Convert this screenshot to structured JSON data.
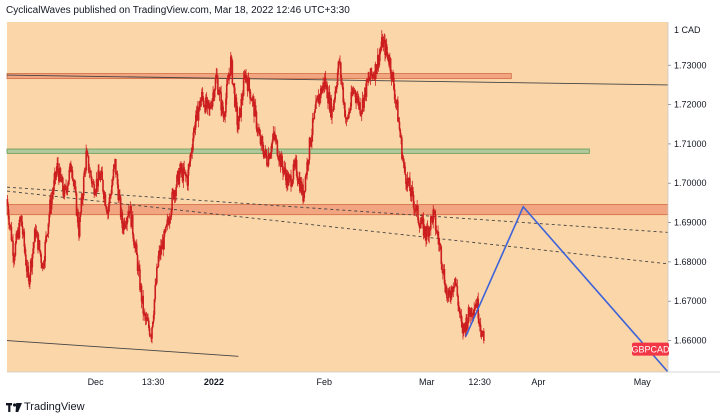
{
  "header": {
    "attribution": "CyclicalWaves published on TradingView.com, Mar 18, 2022 12:46 UTC+3:30"
  },
  "footer": {
    "brand": "TradingView",
    "logo_icon": "tradingview-logo-icon"
  },
  "colors": {
    "background": "#fbd6a9",
    "candle": "#cc1e1e",
    "trend_line": "#444444",
    "pattern_line": "#3d63d8",
    "resistance_zone": "#f0a07c",
    "support_zone": "#a8c89a",
    "badge": "#f23645"
  },
  "chart_data": {
    "type": "candlestick",
    "symbol": "GBPCAD",
    "currency": "CAD",
    "timeframe_axis": [
      "Dec",
      "13:30",
      "2022",
      "Feb",
      "Mar",
      "12:30",
      "Apr",
      "May"
    ],
    "y_ticks": [
      "1.73000",
      "1.72000",
      "1.71000",
      "1.70000",
      "1.69000",
      "1.68000",
      "1.67000",
      "1.66000"
    ],
    "ylim": [
      1.652,
      1.741
    ],
    "last_price_label": "GBPCAD",
    "price_path": [
      1.696,
      1.682,
      1.691,
      1.675,
      1.688,
      1.679,
      1.694,
      1.704,
      1.697,
      1.705,
      1.688,
      1.707,
      1.699,
      1.702,
      1.693,
      1.705,
      1.689,
      1.694,
      1.681,
      1.666,
      1.662,
      1.681,
      1.687,
      1.697,
      1.703,
      1.701,
      1.715,
      1.722,
      1.718,
      1.727,
      1.717,
      1.731,
      1.714,
      1.728,
      1.721,
      1.711,
      1.706,
      1.712,
      1.705,
      1.7,
      1.704,
      1.697,
      1.711,
      1.721,
      1.726,
      1.718,
      1.731,
      1.715,
      1.724,
      1.719,
      1.726,
      1.729,
      1.736,
      1.731,
      1.719,
      1.703,
      1.697,
      1.691,
      1.687,
      1.692,
      1.683,
      1.67,
      1.676,
      1.662,
      1.667,
      1.67,
      1.659
    ],
    "horizontal_zones": [
      {
        "kind": "resistance",
        "price_top": 1.7279,
        "price_bottom": 1.7266
      },
      {
        "kind": "support",
        "price_top": 1.7087,
        "price_bottom": 1.7076
      },
      {
        "kind": "resistance",
        "price_top": 1.6946,
        "price_bottom": 1.692
      }
    ],
    "trend_lines": [
      {
        "style": "solid",
        "points": [
          [
            0.0,
            1.7275
          ],
          [
            1.0,
            1.725
          ]
        ]
      },
      {
        "style": "solid",
        "points": [
          [
            0.0,
            1.66
          ],
          [
            0.35,
            1.656
          ]
        ]
      },
      {
        "style": "dashed",
        "points": [
          [
            0.0,
            1.699
          ],
          [
            1.0,
            1.6875
          ]
        ]
      },
      {
        "style": "dashed",
        "points": [
          [
            0.0,
            1.698
          ],
          [
            1.0,
            1.6795
          ]
        ]
      }
    ],
    "projection_path": [
      {
        "position": 0.694,
        "price": 1.661
      },
      {
        "position": 0.781,
        "price": 1.694
      },
      {
        "position": 1.0,
        "price": 1.652
      }
    ]
  }
}
